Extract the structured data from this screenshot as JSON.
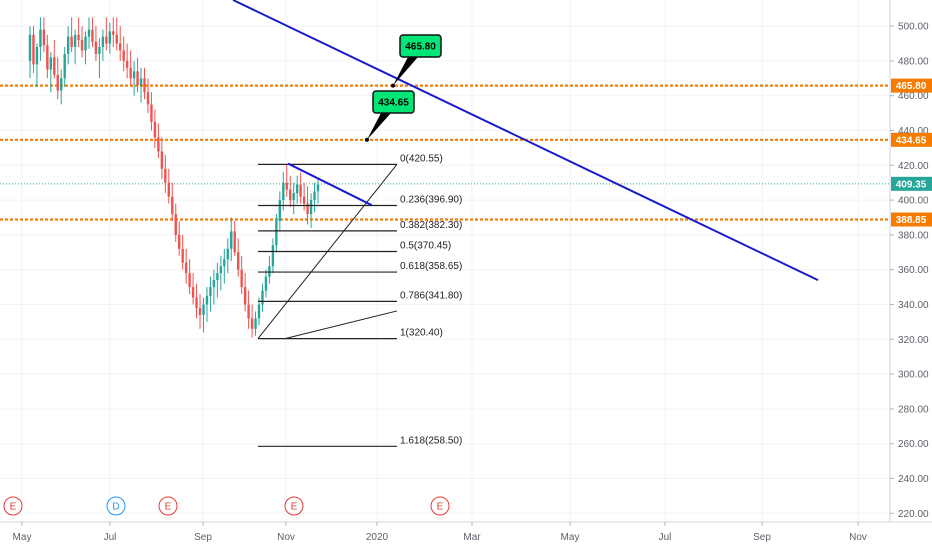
{
  "chart_data": {
    "type": "candlestick",
    "x_axis": {
      "ticks": [
        "May",
        "Jul",
        "Sep",
        "Nov",
        "2020",
        "Mar",
        "May",
        "Jul",
        "Sep",
        "Nov"
      ]
    },
    "y_axis": {
      "ticks": [
        "500.00",
        "480.00",
        "460.00",
        "440.00",
        "420.00",
        "400.00",
        "380.00",
        "360.00",
        "340.00",
        "320.00",
        "300.00",
        "280.00",
        "260.00",
        "240.00",
        "220.00"
      ],
      "range": [
        215,
        515
      ]
    },
    "price_levels": [
      {
        "label": "465.80",
        "value": 465.8,
        "color": "#f57c00",
        "style": "dotted"
      },
      {
        "label": "434.65",
        "value": 434.65,
        "color": "#f57c00",
        "style": "dotted"
      },
      {
        "label": "388.85",
        "value": 388.85,
        "color": "#f57c00",
        "style": "dotted"
      },
      {
        "label": "409.35",
        "value": 409.35,
        "color": "#26a69a",
        "style": "dotted"
      }
    ],
    "callouts": [
      {
        "text": "465.80",
        "value": 465.8
      },
      {
        "text": "434.65",
        "value": 434.65
      }
    ],
    "fibonacci": [
      {
        "label": "0(420.55)",
        "value": 420.55
      },
      {
        "label": "0.236(396.90)",
        "value": 396.9
      },
      {
        "label": "0.382(382.30)",
        "value": 382.3
      },
      {
        "label": "0.5(370.45)",
        "value": 370.45
      },
      {
        "label": "0.618(358.65)",
        "value": 358.65
      },
      {
        "label": "0.786(341.80)",
        "value": 341.8
      },
      {
        "label": "1(320.40)",
        "value": 320.4
      },
      {
        "label": "1.618(258.50)",
        "value": 258.5
      }
    ],
    "trendlines": [
      {
        "name": "long-downtrend",
        "color": "#1a1acc",
        "from": 515,
        "to": 354
      },
      {
        "name": "short-downtrend",
        "color": "#1a1acc",
        "from": 421,
        "to": 397
      }
    ],
    "events": [
      {
        "letter": "E",
        "color": "#e53935"
      },
      {
        "letter": "D",
        "color": "#2196f3"
      },
      {
        "letter": "E",
        "color": "#e53935"
      },
      {
        "letter": "E",
        "color": "#e53935"
      },
      {
        "letter": "E",
        "color": "#e53935"
      }
    ],
    "colors": {
      "up": "#26a69a",
      "down": "#ef5350",
      "grid": "#f0f3fa",
      "axis_text": "#5d606b",
      "callout_bg": "#00e676"
    },
    "candles": [
      [
        480,
        500,
        470,
        495
      ],
      [
        495,
        500,
        473,
        478
      ],
      [
        478,
        490,
        465,
        488
      ],
      [
        488,
        505,
        480,
        498
      ],
      [
        498,
        505,
        485,
        489
      ],
      [
        489,
        495,
        470,
        475
      ],
      [
        475,
        485,
        462,
        482
      ],
      [
        482,
        492,
        470,
        472
      ],
      [
        472,
        482,
        458,
        463
      ],
      [
        463,
        475,
        455,
        470
      ],
      [
        470,
        488,
        465,
        484
      ],
      [
        484,
        500,
        478,
        494
      ],
      [
        494,
        505,
        485,
        488
      ],
      [
        488,
        498,
        478,
        495
      ],
      [
        495,
        505,
        488,
        492
      ],
      [
        492,
        500,
        482,
        486
      ],
      [
        486,
        497,
        478,
        494
      ],
      [
        494,
        505,
        487,
        498
      ],
      [
        498,
        505,
        488,
        491
      ],
      [
        491,
        500,
        480,
        484
      ],
      [
        484,
        493,
        470,
        488
      ],
      [
        488,
        498,
        480,
        494
      ],
      [
        494,
        505,
        486,
        490
      ],
      [
        490,
        502,
        484,
        497
      ],
      [
        497,
        505,
        488,
        495
      ],
      [
        495,
        505,
        486,
        490
      ],
      [
        490,
        500,
        480,
        486
      ],
      [
        486,
        494,
        474,
        480
      ],
      [
        480,
        490,
        470,
        476
      ],
      [
        476,
        486,
        466,
        470
      ],
      [
        470,
        480,
        460,
        474
      ],
      [
        474,
        482,
        462,
        466
      ],
      [
        466,
        476,
        456,
        470
      ],
      [
        470,
        476,
        458,
        462
      ],
      [
        462,
        470,
        450,
        455
      ],
      [
        455,
        462,
        440,
        445
      ],
      [
        445,
        452,
        430,
        436
      ],
      [
        436,
        444,
        424,
        428
      ],
      [
        428,
        436,
        412,
        418
      ],
      [
        418,
        426,
        404,
        410
      ],
      [
        410,
        418,
        398,
        402
      ],
      [
        402,
        410,
        388,
        392
      ],
      [
        392,
        398,
        376,
        380
      ],
      [
        380,
        388,
        368,
        372
      ],
      [
        372,
        380,
        360,
        364
      ],
      [
        364,
        372,
        352,
        358
      ],
      [
        358,
        366,
        346,
        350
      ],
      [
        350,
        358,
        340,
        344
      ],
      [
        344,
        352,
        332,
        338
      ],
      [
        338,
        346,
        326,
        334
      ],
      [
        334,
        344,
        324,
        340
      ],
      [
        340,
        350,
        330,
        345
      ],
      [
        345,
        356,
        336,
        350
      ],
      [
        350,
        360,
        340,
        354
      ],
      [
        354,
        364,
        344,
        358
      ],
      [
        358,
        368,
        348,
        362
      ],
      [
        362,
        372,
        352,
        366
      ],
      [
        366,
        378,
        358,
        372
      ],
      [
        372,
        390,
        365,
        382
      ],
      [
        382,
        388,
        368,
        370
      ],
      [
        370,
        378,
        356,
        360
      ],
      [
        360,
        368,
        346,
        350
      ],
      [
        350,
        358,
        336,
        340
      ],
      [
        340,
        348,
        326,
        332
      ],
      [
        332,
        340,
        321,
        326
      ],
      [
        326,
        336,
        322,
        332
      ],
      [
        332,
        344,
        328,
        340
      ],
      [
        340,
        352,
        336,
        348
      ],
      [
        348,
        360,
        344,
        356
      ],
      [
        356,
        368,
        352,
        362
      ],
      [
        362,
        378,
        358,
        374
      ],
      [
        374,
        392,
        370,
        388
      ],
      [
        388,
        405,
        382,
        400
      ],
      [
        400,
        416,
        394,
        410
      ],
      [
        410,
        421,
        402,
        406
      ],
      [
        406,
        414,
        396,
        400
      ],
      [
        400,
        410,
        392,
        404
      ],
      [
        404,
        414,
        398,
        409
      ],
      [
        409,
        416,
        398,
        402
      ],
      [
        402,
        410,
        394,
        398
      ],
      [
        398,
        408,
        386,
        392
      ],
      [
        392,
        404,
        384,
        400
      ],
      [
        400,
        410,
        393,
        405
      ],
      [
        405,
        412,
        398,
        409
      ]
    ]
  }
}
